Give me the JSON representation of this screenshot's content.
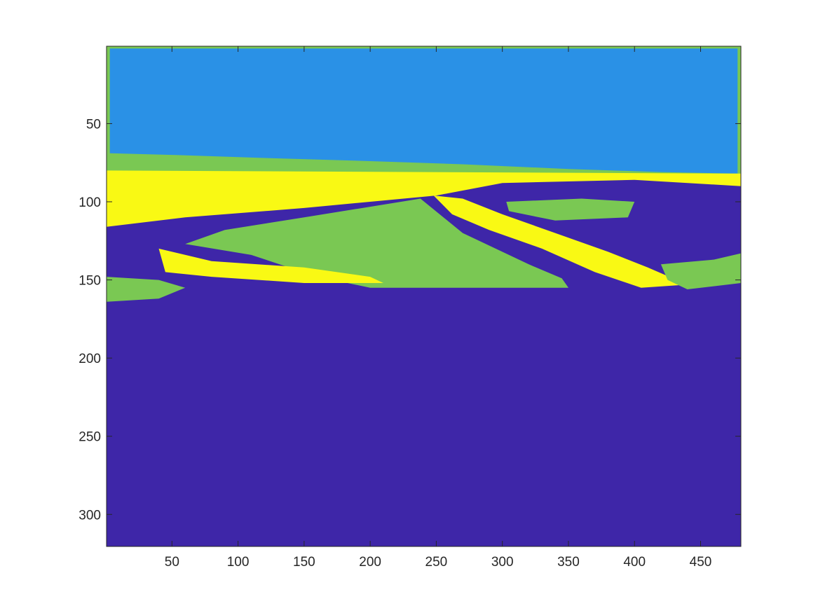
{
  "figure": {
    "background": "#ffffff"
  },
  "chart_data": {
    "type": "heatmap",
    "title": "",
    "xlabel": "",
    "ylabel": "",
    "xlim": [
      0.5,
      480.5
    ],
    "ylim": [
      0.5,
      320.5
    ],
    "y_reversed": true,
    "grid": false,
    "legend": "none",
    "x_ticks": [
      50,
      100,
      150,
      200,
      250,
      300,
      350,
      400,
      450
    ],
    "y_ticks": [
      50,
      100,
      150,
      200,
      250,
      300
    ],
    "colormap": "parula",
    "classes": [
      {
        "id": 1,
        "color": "#3e26a8"
      },
      {
        "id": 2,
        "color": "#2a91e6"
      },
      {
        "id": 3,
        "color": "#7ac853"
      },
      {
        "id": 4,
        "color": "#f9f914"
      }
    ],
    "regions": [
      {
        "class": 3,
        "outline": [
          [
            0.5,
            0.5
          ],
          [
            480.5,
            0.5
          ],
          [
            480.5,
            86
          ],
          [
            0.5,
            86
          ]
        ]
      },
      {
        "class": 2,
        "outline": [
          [
            3,
            2
          ],
          [
            478,
            2
          ],
          [
            478,
            82
          ],
          [
            420,
            81
          ],
          [
            350,
            79
          ],
          [
            270,
            76
          ],
          [
            200,
            74
          ],
          [
            120,
            72
          ],
          [
            50,
            70
          ],
          [
            3,
            69
          ]
        ]
      },
      {
        "class": 4,
        "outline": [
          [
            0.5,
            80
          ],
          [
            480.5,
            82
          ],
          [
            480.5,
            100
          ],
          [
            420,
            104
          ],
          [
            320,
            102
          ],
          [
            250,
            108
          ],
          [
            150,
            112
          ],
          [
            60,
            118
          ],
          [
            0.5,
            118
          ]
        ]
      },
      {
        "class": 1,
        "outline": [
          [
            0.5,
            116
          ],
          [
            60,
            110
          ],
          [
            150,
            104
          ],
          [
            250,
            96
          ],
          [
            300,
            88
          ],
          [
            400,
            86
          ],
          [
            480.5,
            90
          ],
          [
            480.5,
            320.5
          ],
          [
            0.5,
            320.5
          ]
        ]
      },
      {
        "class": 3,
        "outline": [
          [
            60,
            127
          ],
          [
            90,
            118
          ],
          [
            150,
            110
          ],
          [
            238,
            98
          ],
          [
            270,
            120
          ],
          [
            320,
            140
          ],
          [
            345,
            149
          ],
          [
            350,
            155
          ],
          [
            200,
            155
          ],
          [
            160,
            148
          ],
          [
            110,
            134
          ]
        ]
      },
      {
        "class": 4,
        "outline": [
          [
            40,
            130
          ],
          [
            80,
            138
          ],
          [
            150,
            142
          ],
          [
            200,
            148
          ],
          [
            210,
            152
          ],
          [
            150,
            152
          ],
          [
            80,
            148
          ],
          [
            45,
            145
          ]
        ]
      },
      {
        "class": 4,
        "outline": [
          [
            248,
            96
          ],
          [
            270,
            98
          ],
          [
            300,
            108
          ],
          [
            340,
            120
          ],
          [
            380,
            132
          ],
          [
            410,
            142
          ],
          [
            440,
            153
          ],
          [
            405,
            155
          ],
          [
            370,
            145
          ],
          [
            330,
            130
          ],
          [
            290,
            118
          ],
          [
            262,
            108
          ]
        ]
      },
      {
        "class": 3,
        "outline": [
          [
            303,
            100
          ],
          [
            360,
            98
          ],
          [
            400,
            100
          ],
          [
            395,
            110
          ],
          [
            340,
            112
          ],
          [
            305,
            106
          ]
        ]
      },
      {
        "class": 3,
        "outline": [
          [
            420,
            140
          ],
          [
            460,
            137
          ],
          [
            480.5,
            133
          ],
          [
            480.5,
            152
          ],
          [
            440,
            156
          ],
          [
            425,
            150
          ]
        ]
      },
      {
        "class": 3,
        "outline": [
          [
            0.5,
            148
          ],
          [
            40,
            150
          ],
          [
            60,
            155
          ],
          [
            40,
            162
          ],
          [
            0.5,
            164
          ]
        ]
      }
    ]
  }
}
